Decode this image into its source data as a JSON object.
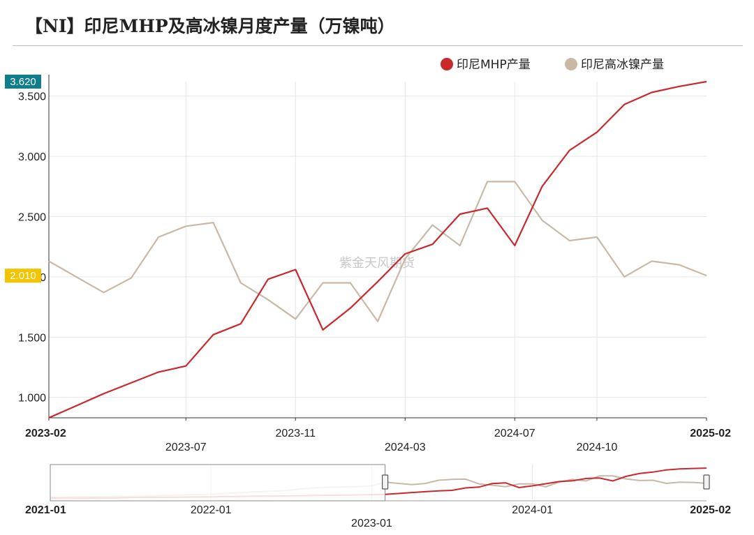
{
  "page": {
    "title": "【NI】印尼MHP及高冰镍月度产量（万镍吨）",
    "watermark": "紫金天风期货"
  },
  "colors": {
    "mhp": "#c9282d",
    "nickel_matte": "#c8b9a6",
    "grid": "#e6e6e6",
    "axis": "#333333",
    "badge_top": "#0e7d8c",
    "badge_last": "#f5c400"
  },
  "chart_data": {
    "type": "line",
    "title": "【NI】印尼MHP及高冰镍月度产量（万镍吨）",
    "x": [
      "2023-02",
      "2023-03",
      "2023-04",
      "2023-05",
      "2023-06",
      "2023-07",
      "2023-08",
      "2023-09",
      "2023-10",
      "2023-11",
      "2023-12",
      "2024-01",
      "2024-02",
      "2024-03",
      "2024-04",
      "2024-05",
      "2024-06",
      "2024-07",
      "2024-08",
      "2024-09",
      "2024-10",
      "2024-11",
      "2024-12",
      "2025-01",
      "2025-02"
    ],
    "series": [
      {
        "name": "印尼MHP产量",
        "color": "#c9282d",
        "values": [
          0.83,
          0.93,
          1.03,
          1.12,
          1.21,
          1.26,
          1.52,
          1.61,
          1.98,
          2.06,
          1.56,
          1.74,
          1.96,
          2.19,
          2.27,
          2.52,
          2.57,
          2.26,
          2.75,
          3.05,
          3.2,
          3.43,
          3.53,
          3.58,
          3.62
        ]
      },
      {
        "name": "印尼高冰镍产量",
        "color": "#c8b9a6",
        "values": [
          2.13,
          2.0,
          1.87,
          1.99,
          2.33,
          2.42,
          2.45,
          1.95,
          1.81,
          1.65,
          1.95,
          1.95,
          1.63,
          2.15,
          2.43,
          2.26,
          2.79,
          2.79,
          2.47,
          2.3,
          2.33,
          2.0,
          2.13,
          2.1,
          2.01
        ]
      }
    ],
    "ylim": [
      0.83,
      3.62
    ],
    "y_ticks": [
      "1.000",
      "1.500",
      "2.000",
      "2.500",
      "3.000",
      "3.500"
    ],
    "y_tick_values": [
      1.0,
      1.5,
      2.0,
      2.5,
      3.0,
      3.5
    ],
    "x_tick_labels": [
      {
        "label": "2023-02",
        "index": 0,
        "row": 0,
        "bold": true
      },
      {
        "label": "2023-07",
        "index": 5,
        "row": 1,
        "bold": false
      },
      {
        "label": "2023-11",
        "index": 9,
        "row": 0,
        "bold": false
      },
      {
        "label": "2024-03",
        "index": 13,
        "row": 1,
        "bold": false
      },
      {
        "label": "2024-07",
        "index": 17,
        "row": 0,
        "bold": false
      },
      {
        "label": "2024-10",
        "index": 20,
        "row": 1,
        "bold": false
      },
      {
        "label": "2025-02",
        "index": 24,
        "row": 0,
        "bold": true
      }
    ],
    "grid": true,
    "legend_position": "top-right",
    "badges": {
      "top": "3.620",
      "last": "2.010"
    },
    "navigator": {
      "start": "2021-01",
      "end": "2025-02",
      "tick_labels": [
        "2021-01",
        "2022-01",
        "2023-01",
        "2024-01",
        "2025-02"
      ],
      "tick_months": [
        0,
        12,
        24,
        36,
        49
      ],
      "window_start_month": 25,
      "mhp_values": [
        0.42,
        0.43,
        0.44,
        0.45,
        0.46,
        0.47,
        0.5,
        0.52,
        0.53,
        0.54,
        0.55,
        0.56,
        0.58,
        0.6,
        0.62,
        0.64,
        0.65,
        0.66,
        0.68,
        0.7,
        0.72,
        0.74,
        0.76,
        0.78,
        0.8,
        0.83,
        0.93,
        1.03,
        1.12,
        1.21,
        1.26,
        1.52,
        1.61,
        1.98,
        2.06,
        1.56,
        1.74,
        1.96,
        2.19,
        2.27,
        2.52,
        2.57,
        2.26,
        2.75,
        3.05,
        3.2,
        3.43,
        3.53,
        3.58,
        3.62
      ],
      "matte_values": [
        0.55,
        0.56,
        0.57,
        0.58,
        0.6,
        0.62,
        0.64,
        0.66,
        0.7,
        0.74,
        0.78,
        0.82,
        0.86,
        0.92,
        1.0,
        1.08,
        1.14,
        1.2,
        1.3,
        1.45,
        1.55,
        1.6,
        1.62,
        1.66,
        1.72,
        2.13,
        2.0,
        1.87,
        1.99,
        2.33,
        2.42,
        2.45,
        1.95,
        1.81,
        1.65,
        1.95,
        1.95,
        1.63,
        2.15,
        2.43,
        2.26,
        2.79,
        2.79,
        2.47,
        2.3,
        2.33,
        2.0,
        2.13,
        2.1,
        2.01
      ]
    }
  }
}
